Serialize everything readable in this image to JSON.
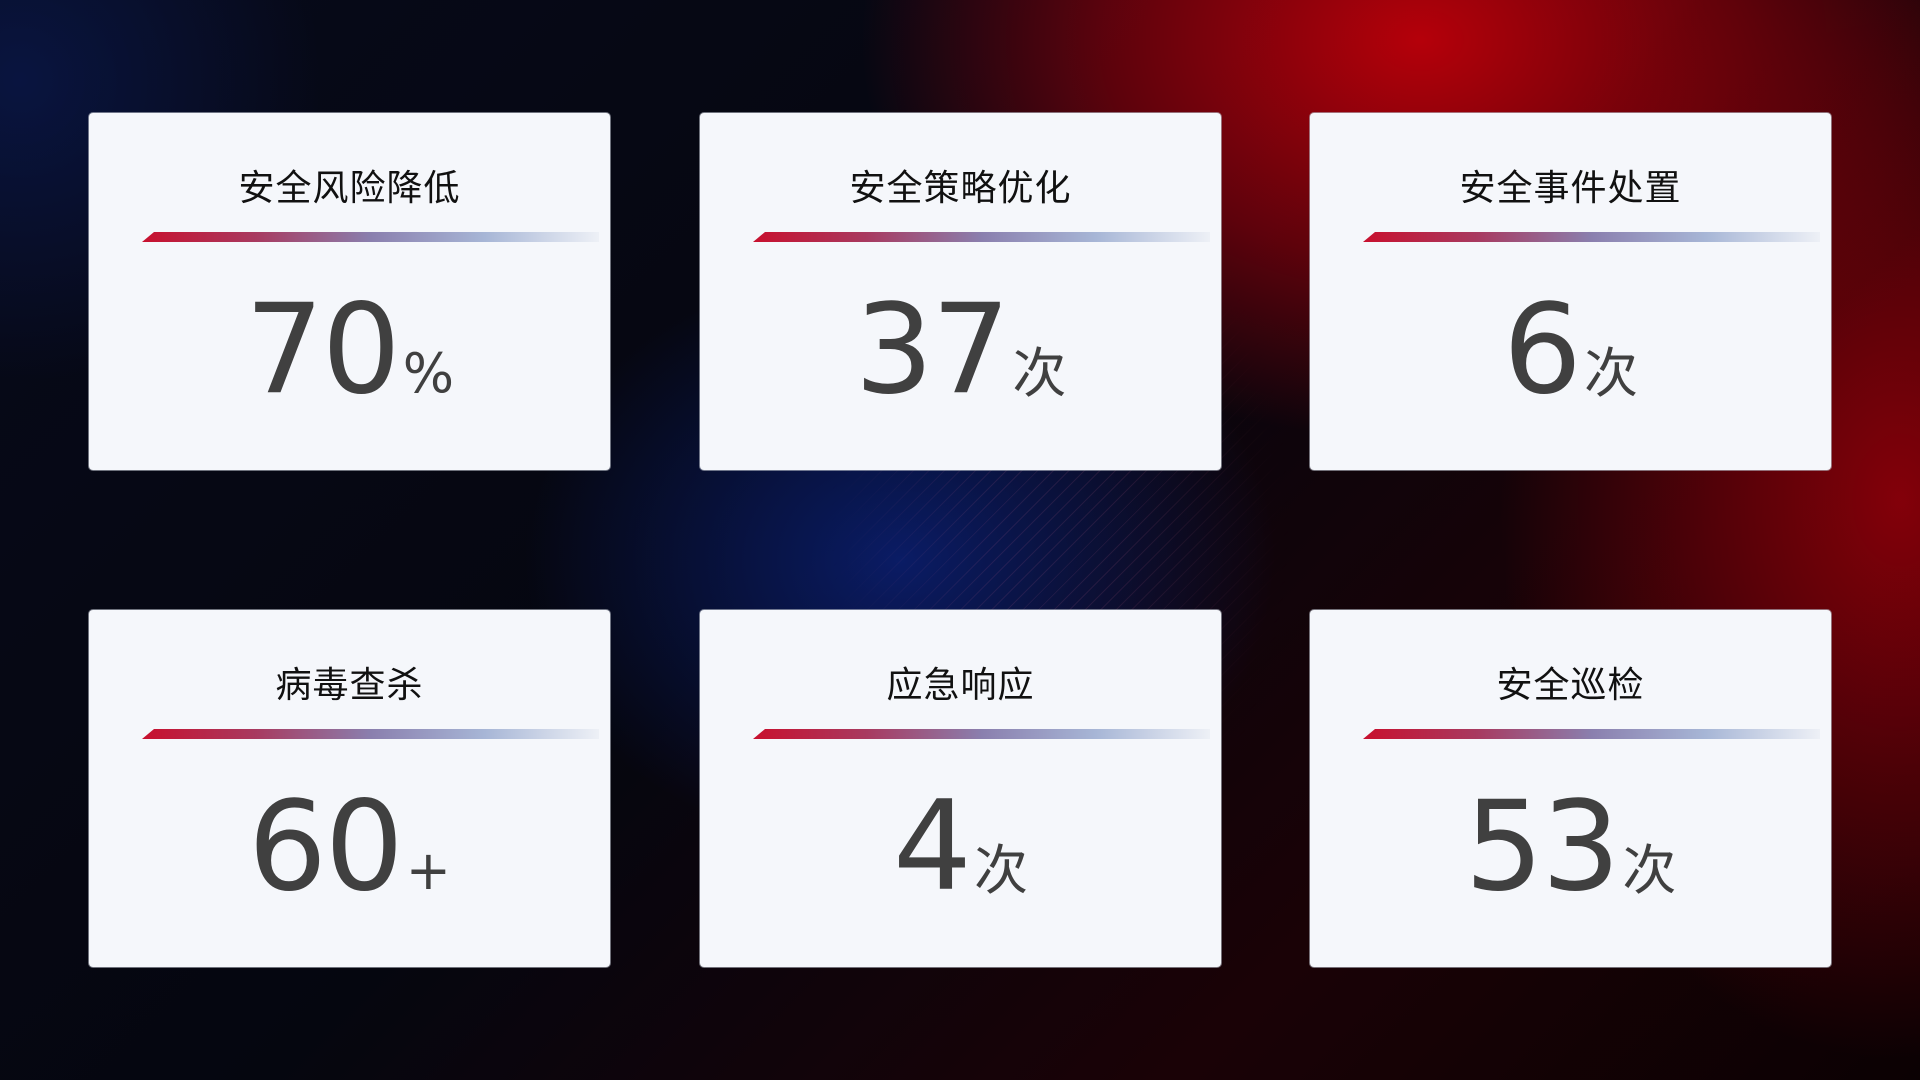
{
  "cards": [
    {
      "title": "安全风险降低",
      "value": "70",
      "unit": "%"
    },
    {
      "title": "安全策略优化",
      "value": "37",
      "unit": "次"
    },
    {
      "title": "安全事件处置",
      "value": "6",
      "unit": "次"
    },
    {
      "title": "病毒查杀",
      "value": "60",
      "unit": "+"
    },
    {
      "title": "应急响应",
      "value": "4",
      "unit": "次"
    },
    {
      "title": "安全巡检",
      "value": "53",
      "unit": "次"
    }
  ],
  "colors": {
    "accent_red": "#c8102e",
    "accent_blue": "#8a9cc8",
    "card_bg": "#f5f7fb",
    "value_text": "#404040"
  }
}
